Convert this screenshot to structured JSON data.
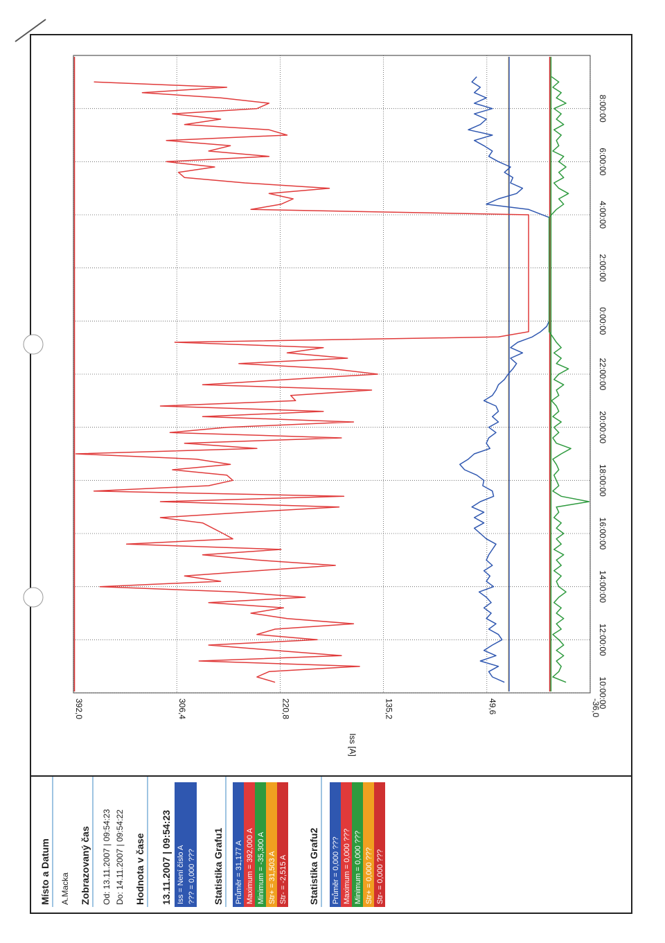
{
  "sidebar": {
    "place_heading": "Místo a Datum",
    "place_value": "A.Macka",
    "time_heading": "Zobrazovaný čas",
    "time_from": "Od: 13.11.2007 | 09:54:23",
    "time_to": "Do: 14.11.2007 | 09:54:22",
    "value_heading": "Hodnota v čase",
    "value_time": "13.11.2007 | 09:54:23",
    "value_items": [
      "Iss = Není číslo A",
      "??? = 0,000 ???"
    ],
    "stats1_heading": "Statistika Grafu1",
    "stats1_items": [
      "Průměr = 31,177 A",
      "Maximum = 392,000 A",
      "Minimum = -35,300 A",
      "Str+ = 31,503 A",
      "Str- = -2,515 A"
    ],
    "stats2_heading": "Statistika Grafu2",
    "stats2_items": [
      "Průměr = 0,000 ???",
      "Maximum = 0,000 ???",
      "Minimum = 0,000 ???",
      "Str+ = 0,000 ???",
      "Str- = 0,000 ???"
    ]
  },
  "colors": {
    "blue": "#2f57b0",
    "red": "#e03a3a",
    "green": "#2e9a3e",
    "orange": "#f0a020",
    "crimson": "#cf3030",
    "frame": "#222222"
  },
  "chart_data": {
    "type": "line",
    "ylabel": "Iss [A]",
    "ylim": [
      -36.0,
      392.0
    ],
    "yticks": [
      "392,0",
      "306,4",
      "220,8",
      "135,2",
      "49,6",
      "-36,0"
    ],
    "xticks": [
      "10:00:00",
      "12:00:00",
      "14:00:00",
      "16:00:00",
      "18:00:00",
      "20:00:00",
      "22:00:00",
      "0:00:00",
      "2:00:00",
      "4:00:00",
      "6:00:00",
      "8:00:00"
    ],
    "xlim_hours": [
      10.0,
      34.0
    ],
    "series": [
      {
        "color": "red",
        "points": [
          [
            10.4,
            225
          ],
          [
            10.6,
            240
          ],
          [
            10.8,
            230
          ],
          [
            11.0,
            155
          ],
          [
            11.2,
            288
          ],
          [
            11.4,
            170
          ],
          [
            11.6,
            225
          ],
          [
            11.8,
            280
          ],
          [
            12.0,
            190
          ],
          [
            12.2,
            240
          ],
          [
            12.4,
            225
          ],
          [
            12.6,
            160
          ],
          [
            12.8,
            215
          ],
          [
            13.0,
            245
          ],
          [
            13.2,
            218
          ],
          [
            13.4,
            280
          ],
          [
            13.6,
            200
          ],
          [
            13.8,
            258
          ],
          [
            14.0,
            370
          ],
          [
            14.2,
            270
          ],
          [
            14.4,
            300
          ],
          [
            14.6,
            240
          ],
          [
            14.8,
            175
          ],
          [
            15.0,
            240
          ],
          [
            15.2,
            285
          ],
          [
            15.4,
            220
          ],
          [
            15.6,
            348
          ],
          [
            15.8,
            260
          ],
          [
            16.0,
            268
          ],
          [
            16.4,
            285
          ],
          [
            16.6,
            320
          ],
          [
            16.8,
            248
          ],
          [
            17.0,
            172
          ],
          [
            17.2,
            320
          ],
          [
            17.4,
            168
          ],
          [
            17.6,
            375
          ],
          [
            17.8,
            280
          ],
          [
            18.0,
            260
          ],
          [
            18.2,
            265
          ],
          [
            18.4,
            310
          ],
          [
            18.6,
            262
          ],
          [
            18.8,
            290
          ],
          [
            19.0,
            390
          ],
          [
            19.2,
            240
          ],
          [
            19.4,
            300
          ],
          [
            19.6,
            170
          ],
          [
            19.8,
            312
          ],
          [
            20.0,
            265
          ],
          [
            20.2,
            160
          ],
          [
            20.4,
            285
          ],
          [
            20.6,
            185
          ],
          [
            20.8,
            320
          ],
          [
            21.0,
            208
          ],
          [
            21.2,
            212
          ],
          [
            21.4,
            145
          ],
          [
            21.6,
            285
          ],
          [
            21.8,
            215
          ],
          [
            22.0,
            140
          ],
          [
            22.2,
            178
          ],
          [
            22.4,
            255
          ],
          [
            22.6,
            165
          ],
          [
            22.8,
            215
          ],
          [
            23.0,
            185
          ],
          [
            23.2,
            308
          ],
          [
            23.4,
            40
          ],
          [
            23.6,
            15
          ],
          [
            24.0,
            15
          ],
          [
            24.4,
            15
          ],
          [
            25.0,
            15
          ],
          [
            26.0,
            15
          ],
          [
            27.0,
            15
          ],
          [
            27.5,
            15
          ],
          [
            27.8,
            15
          ],
          [
            28.0,
            15
          ],
          [
            28.2,
            245
          ],
          [
            28.4,
            220
          ],
          [
            28.6,
            210
          ],
          [
            28.8,
            230
          ],
          [
            29.0,
            180
          ],
          [
            29.2,
            250
          ],
          [
            29.4,
            300
          ],
          [
            29.6,
            305
          ],
          [
            29.8,
            275
          ],
          [
            30.0,
            315
          ],
          [
            30.2,
            230
          ],
          [
            30.4,
            280
          ],
          [
            30.6,
            262
          ],
          [
            30.8,
            315
          ],
          [
            31.0,
            215
          ],
          [
            31.2,
            230
          ],
          [
            31.4,
            300
          ],
          [
            31.6,
            270
          ],
          [
            31.8,
            310
          ],
          [
            32.0,
            240
          ],
          [
            32.2,
            230
          ],
          [
            32.4,
            270
          ],
          [
            32.6,
            335
          ],
          [
            32.8,
            265
          ],
          [
            33.0,
            375
          ]
        ]
      },
      {
        "color": "blue",
        "points": [
          [
            10.4,
            35
          ],
          [
            10.6,
            45
          ],
          [
            10.8,
            48
          ],
          [
            11.0,
            40
          ],
          [
            11.2,
            55
          ],
          [
            11.4,
            42
          ],
          [
            11.6,
            52
          ],
          [
            11.8,
            45
          ],
          [
            12.0,
            37
          ],
          [
            12.2,
            40
          ],
          [
            12.4,
            48
          ],
          [
            12.6,
            42
          ],
          [
            12.8,
            50
          ],
          [
            13.0,
            46
          ],
          [
            13.2,
            52
          ],
          [
            13.4,
            46
          ],
          [
            13.6,
            50
          ],
          [
            13.8,
            56
          ],
          [
            14.0,
            44
          ],
          [
            14.2,
            50
          ],
          [
            14.4,
            47
          ],
          [
            14.6,
            52
          ],
          [
            14.8,
            45
          ],
          [
            15.0,
            50
          ],
          [
            15.2,
            48
          ],
          [
            15.4,
            45
          ],
          [
            15.6,
            42
          ],
          [
            15.8,
            50
          ],
          [
            16.0,
            55
          ],
          [
            16.2,
            60
          ],
          [
            16.4,
            52
          ],
          [
            16.6,
            60
          ],
          [
            16.8,
            52
          ],
          [
            17.0,
            62
          ],
          [
            17.2,
            55
          ],
          [
            17.4,
            44
          ],
          [
            17.6,
            45
          ],
          [
            17.8,
            53
          ],
          [
            18.0,
            52
          ],
          [
            18.2,
            58
          ],
          [
            18.4,
            68
          ],
          [
            18.6,
            72
          ],
          [
            18.8,
            65
          ],
          [
            19.0,
            60
          ],
          [
            19.2,
            47
          ],
          [
            19.4,
            50
          ],
          [
            19.6,
            48
          ],
          [
            19.8,
            42
          ],
          [
            20.0,
            48
          ],
          [
            20.2,
            40
          ],
          [
            20.4,
            45
          ],
          [
            20.6,
            40
          ],
          [
            20.8,
            42
          ],
          [
            21.0,
            52
          ],
          [
            21.2,
            45
          ],
          [
            21.4,
            42
          ],
          [
            21.6,
            40
          ],
          [
            21.8,
            35
          ],
          [
            22.0,
            32
          ],
          [
            22.2,
            28
          ],
          [
            22.4,
            25
          ],
          [
            22.6,
            30
          ],
          [
            22.8,
            20
          ],
          [
            23.0,
            30
          ],
          [
            23.2,
            24
          ],
          [
            23.4,
            12
          ],
          [
            23.6,
            5
          ],
          [
            23.8,
            0
          ],
          [
            24.0,
            -2
          ],
          [
            26.0,
            -2
          ],
          [
            27.0,
            -2
          ],
          [
            27.6,
            -2
          ],
          [
            27.9,
            -2
          ],
          [
            28.2,
            15
          ],
          [
            28.4,
            50
          ],
          [
            28.6,
            40
          ],
          [
            28.8,
            25
          ],
          [
            29.0,
            20
          ],
          [
            29.2,
            30
          ],
          [
            29.4,
            28
          ],
          [
            29.6,
            35
          ],
          [
            29.8,
            30
          ],
          [
            30.0,
            40
          ],
          [
            30.2,
            48
          ],
          [
            30.4,
            45
          ],
          [
            30.6,
            52
          ],
          [
            30.8,
            60
          ],
          [
            31.0,
            45
          ],
          [
            31.2,
            65
          ],
          [
            31.4,
            55
          ],
          [
            31.6,
            50
          ],
          [
            31.8,
            60
          ],
          [
            32.0,
            45
          ],
          [
            32.2,
            60
          ],
          [
            32.4,
            50
          ],
          [
            32.6,
            60
          ],
          [
            32.8,
            55
          ],
          [
            33.0,
            62
          ],
          [
            33.2,
            58
          ]
        ]
      },
      {
        "color": "green",
        "points": [
          [
            10.4,
            -16
          ],
          [
            10.6,
            -5
          ],
          [
            10.8,
            -10
          ],
          [
            11.0,
            -12
          ],
          [
            11.2,
            -8
          ],
          [
            11.4,
            -14
          ],
          [
            11.6,
            -8
          ],
          [
            11.8,
            -14
          ],
          [
            12.0,
            -10
          ],
          [
            12.2,
            -5
          ],
          [
            12.4,
            -12
          ],
          [
            12.6,
            -8
          ],
          [
            12.8,
            -14
          ],
          [
            13.0,
            -8
          ],
          [
            13.2,
            -12
          ],
          [
            13.4,
            -6
          ],
          [
            13.6,
            -10
          ],
          [
            13.8,
            -16
          ],
          [
            14.0,
            -10
          ],
          [
            14.2,
            -8
          ],
          [
            14.4,
            -12
          ],
          [
            14.6,
            -6
          ],
          [
            14.8,
            -12
          ],
          [
            15.0,
            -8
          ],
          [
            15.2,
            -14
          ],
          [
            15.4,
            -6
          ],
          [
            15.6,
            -12
          ],
          [
            15.8,
            -8
          ],
          [
            16.0,
            -14
          ],
          [
            16.2,
            -8
          ],
          [
            16.4,
            -12
          ],
          [
            16.6,
            -6
          ],
          [
            16.8,
            -10
          ],
          [
            17.0,
            -8
          ],
          [
            17.2,
            -35
          ],
          [
            17.4,
            -12
          ],
          [
            17.6,
            -5
          ],
          [
            17.8,
            -10
          ],
          [
            18.0,
            -8
          ],
          [
            18.2,
            -6
          ],
          [
            18.4,
            -10
          ],
          [
            18.6,
            -8
          ],
          [
            18.8,
            -5
          ],
          [
            19.0,
            -12
          ],
          [
            19.2,
            -20
          ],
          [
            19.4,
            -8
          ],
          [
            19.6,
            -5
          ],
          [
            19.8,
            -10
          ],
          [
            20.0,
            -6
          ],
          [
            20.2,
            -12
          ],
          [
            20.4,
            -5
          ],
          [
            20.6,
            -10
          ],
          [
            20.8,
            -8
          ],
          [
            21.0,
            -4
          ],
          [
            21.2,
            -10
          ],
          [
            21.4,
            -8
          ],
          [
            21.6,
            -14
          ],
          [
            21.8,
            -6
          ],
          [
            22.0,
            -10
          ],
          [
            22.2,
            -18
          ],
          [
            22.4,
            -8
          ],
          [
            22.6,
            -12
          ],
          [
            22.8,
            -6
          ],
          [
            23.0,
            -12
          ],
          [
            23.2,
            -8
          ],
          [
            23.4,
            -5
          ],
          [
            23.6,
            -2
          ],
          [
            24.0,
            -2
          ],
          [
            26.0,
            -2
          ],
          [
            27.0,
            -2
          ],
          [
            27.9,
            -2
          ],
          [
            28.2,
            -8
          ],
          [
            28.4,
            -14
          ],
          [
            28.6,
            -10
          ],
          [
            28.8,
            -18
          ],
          [
            29.0,
            -10
          ],
          [
            29.2,
            -6
          ],
          [
            29.4,
            -14
          ],
          [
            29.6,
            -10
          ],
          [
            29.8,
            -16
          ],
          [
            30.0,
            -10
          ],
          [
            30.2,
            -14
          ],
          [
            30.4,
            -5
          ],
          [
            30.6,
            -10
          ],
          [
            30.8,
            -8
          ],
          [
            31.0,
            -12
          ],
          [
            31.2,
            -6
          ],
          [
            31.4,
            -14
          ],
          [
            31.6,
            -8
          ],
          [
            31.8,
            -12
          ],
          [
            32.0,
            -6
          ],
          [
            32.2,
            -16
          ],
          [
            32.4,
            -8
          ],
          [
            32.6,
            -12
          ],
          [
            32.8,
            -5
          ],
          [
            33.0,
            -10
          ],
          [
            33.2,
            -4
          ]
        ]
      }
    ],
    "reference_lines": [
      {
        "color": "orange",
        "value": 31.5
      },
      {
        "color": "blue",
        "value": 31.2
      },
      {
        "color": "crimson",
        "value": -2.5
      },
      {
        "color": "green",
        "value": -3.5
      }
    ],
    "grid": true
  }
}
